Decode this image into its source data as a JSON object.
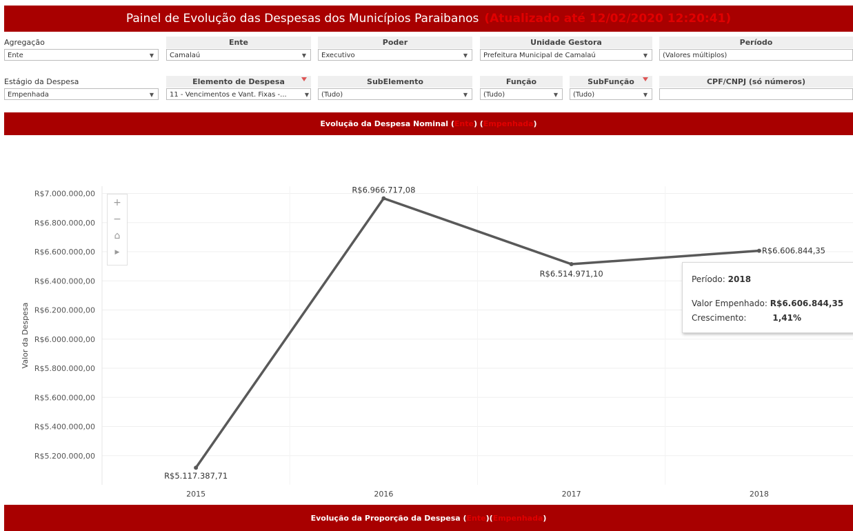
{
  "header": {
    "title": "Painel de Evolução das Despesas dos Municípios Paraibanos",
    "updated": "(Atualizado até 12/02/2020 12:20:41)"
  },
  "filters": {
    "agregacao": {
      "label": "Agregação",
      "value": "Ente"
    },
    "ente": {
      "label": "Ente",
      "value": "Camalaú"
    },
    "poder": {
      "label": "Poder",
      "value": "Executivo"
    },
    "unidade": {
      "label": "Unidade Gestora",
      "value": "Prefeitura Municipal de Camalaú"
    },
    "periodo": {
      "label": "Período",
      "value": "(Valores múltiplos)"
    },
    "estagio": {
      "label": "Estágio da Despesa",
      "value": "Empenhada"
    },
    "elemento": {
      "label": "Elemento de Despesa",
      "value": "11 - Vencimentos e Vant. Fixas -..."
    },
    "subelemento": {
      "label": "SubElemento",
      "value": "(Tudo)"
    },
    "funcao": {
      "label": "Função",
      "value": "(Tudo)"
    },
    "subfuncao": {
      "label": "SubFunção",
      "value": "(Tudo)"
    },
    "cpf": {
      "label": "CPF/CNPJ (só números)",
      "value": ""
    }
  },
  "section1": {
    "prefix": "Evolução da Despesa Nominal (",
    "agg": "Ente",
    "mid": ") (",
    "stage": "Empenhada",
    "suffix": ")"
  },
  "section2": {
    "prefix": "Evolução da Proporção da Despesa (",
    "agg": "Ente",
    "mid": ")(",
    "stage": "Empenhada",
    "suffix": ")"
  },
  "tooltip": {
    "period_label": "Período:",
    "period_value": "2018",
    "value_label": "Valor Empenhado:",
    "value_value": "R$6.606.844,35",
    "growth_label": "Crescimento:",
    "growth_value": "1,41%"
  },
  "zoom_controls": [
    "plus-icon",
    "minus-icon",
    "home-icon",
    "play-icon"
  ],
  "chart_data": {
    "type": "line",
    "x": [
      "2015",
      "2016",
      "2017",
      "2018"
    ],
    "series": [
      {
        "values": [
          5117387.71,
          6966717.08,
          6514971.1,
          6606844.35
        ]
      }
    ],
    "data_labels": [
      "R$5.117.387,71",
      "R$6.966.717,08",
      "R$6.514.971,10",
      "R$6.606.844,35"
    ],
    "ylabel": "Valor da Despesa",
    "yticks": [
      5200000,
      5400000,
      5600000,
      5800000,
      6000000,
      6200000,
      6400000,
      6600000,
      6800000,
      7000000
    ],
    "ytick_labels": [
      "R$5.200.000,00",
      "R$5.400.000,00",
      "R$5.600.000,00",
      "R$5.800.000,00",
      "R$6.000.000,00",
      "R$6.200.000,00",
      "R$6.400.000,00",
      "R$6.600.000,00",
      "R$6.800.000,00",
      "R$7.000.000,00"
    ],
    "ylim": [
      5000000,
      7050000
    ],
    "grid": true,
    "line_color": "#595959"
  }
}
